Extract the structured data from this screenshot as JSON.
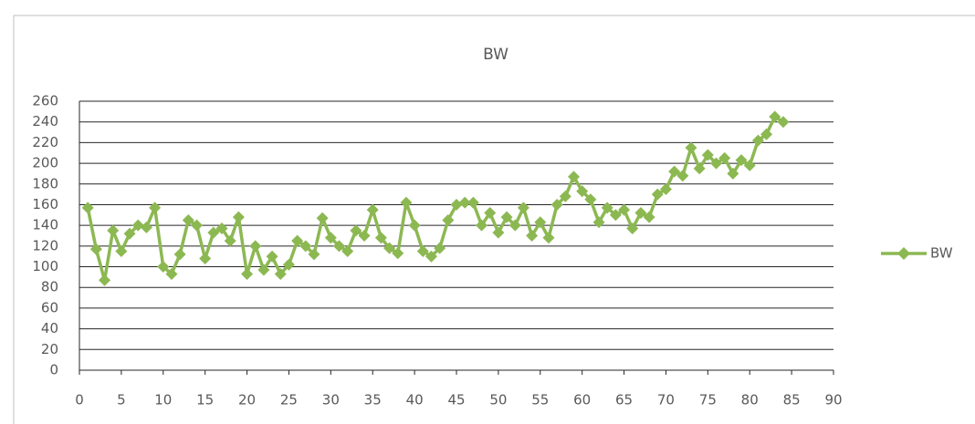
{
  "chart_data": {
    "type": "line",
    "title": "BW",
    "x": [
      1,
      2,
      3,
      4,
      5,
      6,
      7,
      8,
      9,
      10,
      11,
      12,
      13,
      14,
      15,
      16,
      17,
      18,
      19,
      20,
      21,
      22,
      23,
      24,
      25,
      26,
      27,
      28,
      29,
      30,
      31,
      32,
      33,
      34,
      35,
      36,
      37,
      38,
      39,
      40,
      41,
      42,
      43,
      44,
      45,
      46,
      47,
      48,
      49,
      50,
      51,
      52,
      53,
      54,
      55,
      56,
      57,
      58,
      59,
      60,
      61,
      62,
      63,
      64,
      65,
      66,
      67,
      68,
      69,
      70,
      71,
      72,
      73,
      74,
      75,
      76,
      77,
      78,
      79,
      80,
      81,
      82,
      83,
      84
    ],
    "series": [
      {
        "name": "BW",
        "color": "#8cb852",
        "values": [
          157,
          117,
          87,
          135,
          115,
          132,
          140,
          138,
          157,
          100,
          93,
          112,
          145,
          140,
          108,
          133,
          137,
          125,
          148,
          93,
          120,
          97,
          110,
          93,
          102,
          125,
          120,
          112,
          147,
          128,
          120,
          115,
          135,
          130,
          155,
          128,
          118,
          113,
          162,
          140,
          115,
          110,
          118,
          145,
          160,
          162,
          162,
          140,
          152,
          133,
          148,
          140,
          157,
          130,
          143,
          128,
          160,
          168,
          187,
          173,
          165,
          143,
          157,
          150,
          155,
          137,
          152,
          148,
          170,
          175,
          192,
          188,
          215,
          195,
          208,
          200,
          205,
          190,
          203,
          198,
          222,
          228,
          245,
          240
        ]
      }
    ],
    "xlim": [
      0,
      90
    ],
    "xticks": [
      0,
      5,
      10,
      15,
      20,
      25,
      30,
      35,
      40,
      45,
      50,
      55,
      60,
      65,
      70,
      75,
      80,
      85,
      90
    ],
    "ylim": [
      0,
      260
    ],
    "yticks": [
      0,
      20,
      40,
      60,
      80,
      100,
      120,
      140,
      160,
      180,
      200,
      220,
      240,
      260
    ],
    "grid": true,
    "legend": "right"
  }
}
